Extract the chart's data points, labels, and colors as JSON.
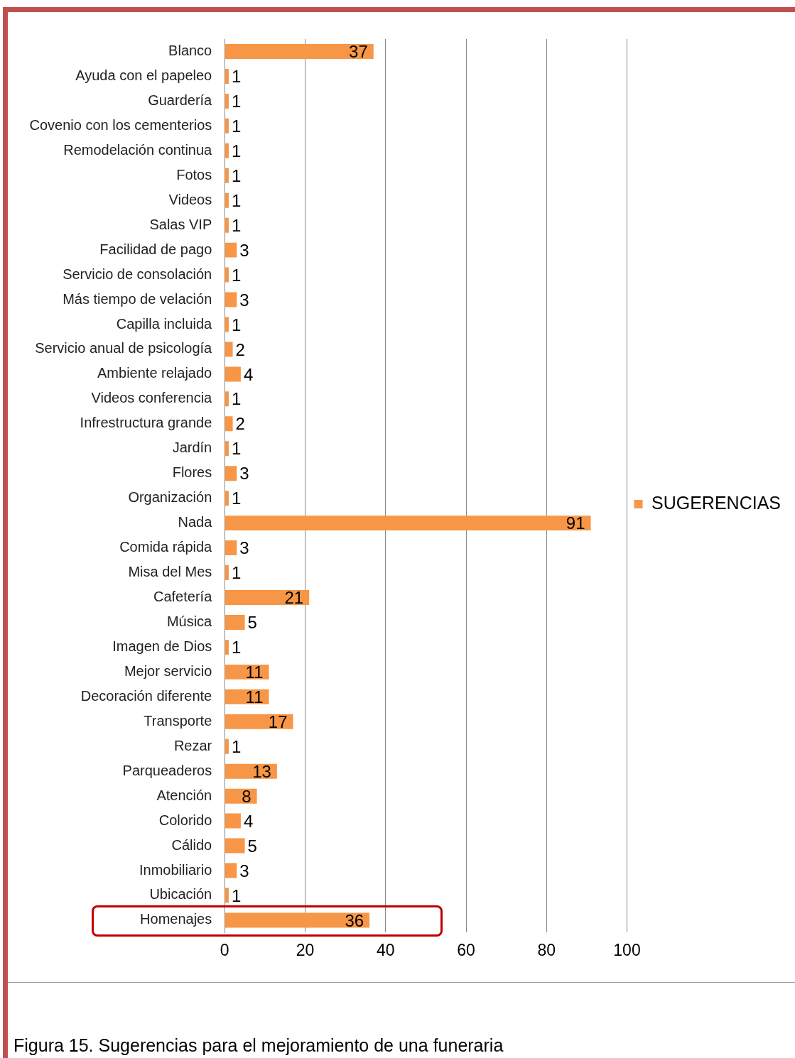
{
  "chart_data": {
    "type": "bar",
    "orientation": "horizontal",
    "categories": [
      "Blanco",
      "Ayuda con el papeleo",
      "Guardería",
      "Covenio con los cementerios",
      "Remodelación continua",
      "Fotos",
      "Videos",
      "Salas VIP",
      "Facilidad de pago",
      "Servicio de consolación",
      "Más tiempo de velación",
      "Capilla incluida",
      "Servicio anual de psicología",
      "Ambiente relajado",
      "Videos conferencia",
      "Infrestructura grande",
      "Jardín",
      "Flores",
      "Organización",
      "Nada",
      "Comida rápida",
      "Misa del Mes",
      "Cafetería",
      "Música",
      "Imagen de Dios",
      "Mejor servicio",
      "Decoración diferente",
      "Transporte",
      "Rezar",
      "Parqueaderos",
      "Atención",
      "Colorido",
      "Cálido",
      "Inmobiliario",
      "Ubicación",
      "Homenajes"
    ],
    "series": [
      {
        "name": "SUGERENCIAS",
        "color": "#f79646",
        "values": [
          37,
          1,
          1,
          1,
          1,
          1,
          1,
          1,
          3,
          1,
          3,
          1,
          2,
          4,
          1,
          2,
          1,
          3,
          1,
          91,
          3,
          1,
          21,
          5,
          1,
          11,
          11,
          17,
          1,
          13,
          8,
          4,
          5,
          3,
          1,
          36
        ]
      }
    ],
    "xlim": [
      0,
      100
    ],
    "xticks": [
      0,
      20,
      40,
      60,
      80,
      100
    ],
    "grid": "x",
    "legend": "right",
    "data_labels": true,
    "annotations": [
      "Figura 15. Sugerencias para el mejoramiento de una funeraria"
    ]
  }
}
